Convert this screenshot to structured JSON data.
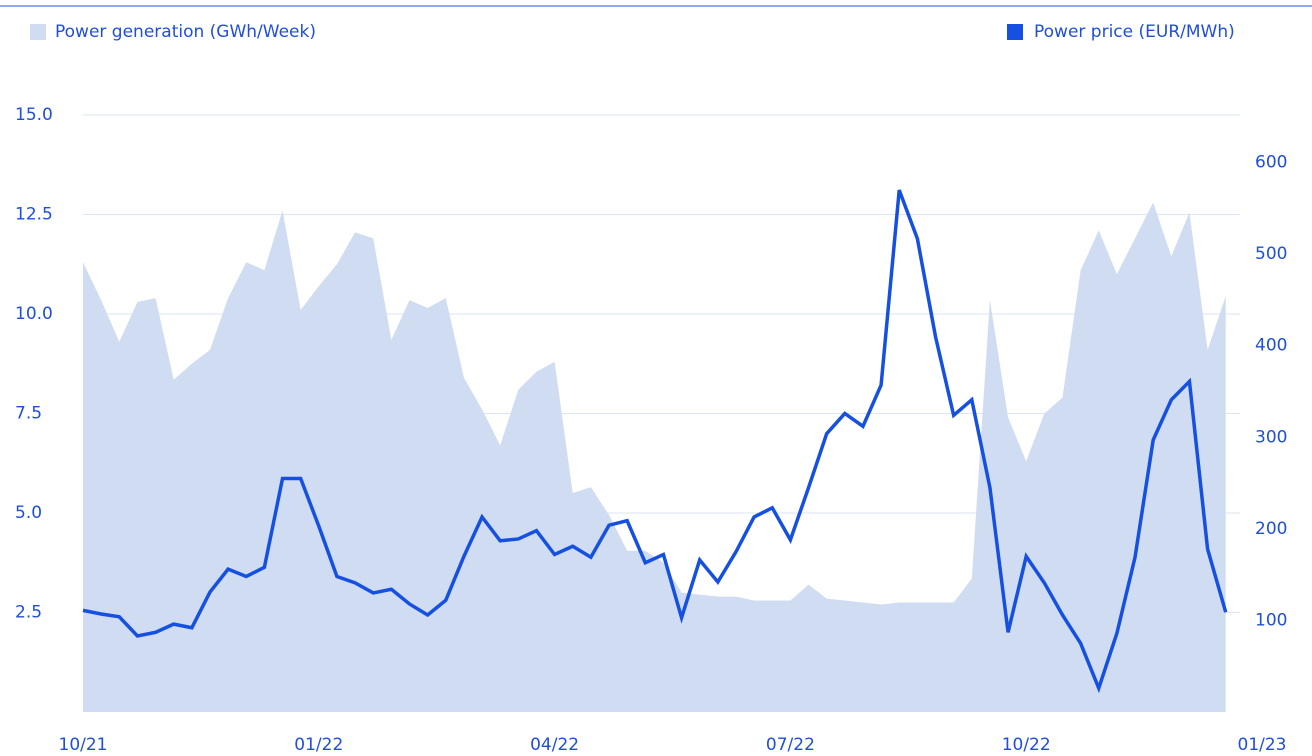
{
  "chart_data": {
    "type": "area-line",
    "x": [
      0,
      1,
      2,
      3,
      4,
      5,
      6,
      7,
      8,
      9,
      10,
      11,
      12,
      13,
      14,
      15,
      16,
      17,
      18,
      19,
      20,
      21,
      22,
      23,
      24,
      25,
      26,
      27,
      28,
      29,
      30,
      31,
      32,
      33,
      34,
      35,
      36,
      37,
      38,
      39,
      40,
      41,
      42,
      43,
      44,
      45,
      46,
      47,
      48,
      49,
      50,
      51,
      52,
      53,
      54,
      55,
      56,
      57,
      58,
      59,
      60,
      61,
      62,
      63
    ],
    "xlim": [
      0,
      65
    ],
    "xticks": [
      {
        "value": 0,
        "label": "10/21"
      },
      {
        "value": 13,
        "label": "01/22"
      },
      {
        "value": 26,
        "label": "04/22"
      },
      {
        "value": 39,
        "label": "07/22"
      },
      {
        "value": 52,
        "label": "10/22"
      },
      {
        "value": 65,
        "label": "01/23"
      }
    ],
    "ylim": [
      0,
      15
    ],
    "yticks": [
      2.5,
      {
        "value": 5,
        "label": "5.0"
      },
      7.5,
      {
        "value": 10,
        "label": "10.0"
      },
      12.5,
      {
        "value": 15,
        "label": "15.0"
      }
    ],
    "y2lim": [
      0,
      652
    ],
    "y2ticks": [
      100,
      200,
      300,
      400,
      500,
      600
    ],
    "grid": true,
    "series": [
      {
        "name": "Power generation (GWh/Week)",
        "color": "#cfdcf2",
        "type": "area",
        "values": [
          11.3,
          10.35,
          9.3,
          10.3,
          10.4,
          8.35,
          8.75,
          9.1,
          10.4,
          11.3,
          11.1,
          12.6,
          10.1,
          10.7,
          11.25,
          12.05,
          11.9,
          9.35,
          10.35,
          10.15,
          10.4,
          8.4,
          7.6,
          6.7,
          8.1,
          8.55,
          8.8,
          5.5,
          5.65,
          4.95,
          4.05,
          4.05,
          3.75,
          3.0,
          2.95,
          2.9,
          2.9,
          2.8,
          2.8,
          2.8,
          3.2,
          2.85,
          2.8,
          2.75,
          2.7,
          2.75,
          2.75,
          2.75,
          2.75,
          3.35,
          10.35,
          7.4,
          6.3,
          7.5,
          7.9,
          11.1,
          12.1,
          11.0,
          11.9,
          12.8,
          11.45,
          12.55,
          9.1,
          10.45
        ]
      },
      {
        "name": "Power price (EUR/MWh)",
        "color": "#1550e0",
        "type": "line",
        "axis": "y2",
        "values": [
          111,
          107,
          104,
          83,
          87,
          96,
          92,
          131,
          156,
          148,
          158,
          255,
          255,
          203,
          148,
          141,
          130,
          134,
          118,
          106,
          122,
          170,
          213,
          187,
          189,
          198,
          172,
          181,
          169,
          204,
          209,
          163,
          172,
          103,
          166,
          142,
          175,
          213,
          223,
          188,
          245,
          304,
          326,
          312,
          357,
          570,
          517,
          410,
          324,
          341,
          245,
          87,
          170,
          141,
          106,
          75,
          26,
          86,
          169,
          297,
          341,
          361,
          178,
          109
        ]
      }
    ]
  }
}
